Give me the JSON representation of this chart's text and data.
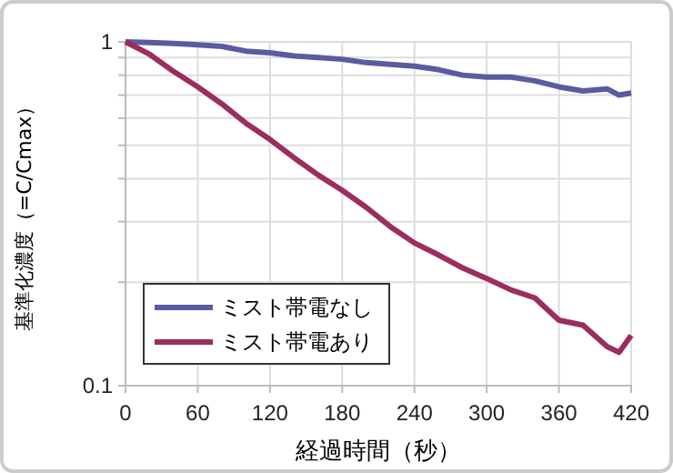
{
  "chart_data": {
    "type": "line",
    "xlabel": "経過時間（秒）",
    "ylabel": "基準化濃度（=C/Cmax）",
    "log": "y",
    "grid": true,
    "legend": "bottom left",
    "xlim": [
      0,
      420
    ],
    "xticks": [
      0,
      60,
      120,
      180,
      240,
      300,
      360,
      420
    ],
    "ylim": [
      0.1,
      1
    ],
    "yticks": [
      0.1,
      {
        "value": 0.2,
        "label": null
      },
      {
        "value": 0.3,
        "label": null
      },
      {
        "value": 0.4,
        "label": null
      },
      {
        "value": 0.5,
        "label": null
      },
      {
        "value": 0.6,
        "label": null
      },
      {
        "value": 0.7,
        "label": null
      },
      {
        "value": 0.8,
        "label": null
      },
      {
        "value": 0.9,
        "label": null
      },
      1
    ],
    "x": [
      0,
      20,
      40,
      60,
      80,
      100,
      120,
      140,
      160,
      180,
      200,
      220,
      240,
      260,
      280,
      300,
      320,
      340,
      360,
      380,
      400,
      410,
      420
    ],
    "series": [
      {
        "name": "ミスト帯電なし",
        "color": "#5b5b9f",
        "values": [
          1,
          0.995,
          0.99,
          0.98,
          0.97,
          0.94,
          0.93,
          0.91,
          0.9,
          0.89,
          0.87,
          0.86,
          0.85,
          0.83,
          0.8,
          0.79,
          0.79,
          0.77,
          0.74,
          0.72,
          0.73,
          0.7,
          0.71
        ]
      },
      {
        "name": "ミスト帯電あり",
        "color": "#9b2d5f",
        "values": [
          1,
          0.92,
          0.82,
          0.74,
          0.66,
          0.58,
          0.52,
          0.46,
          0.41,
          0.37,
          0.33,
          0.29,
          0.26,
          0.24,
          0.22,
          0.205,
          0.19,
          0.18,
          0.155,
          0.15,
          0.13,
          0.125,
          0.14
        ]
      }
    ]
  }
}
